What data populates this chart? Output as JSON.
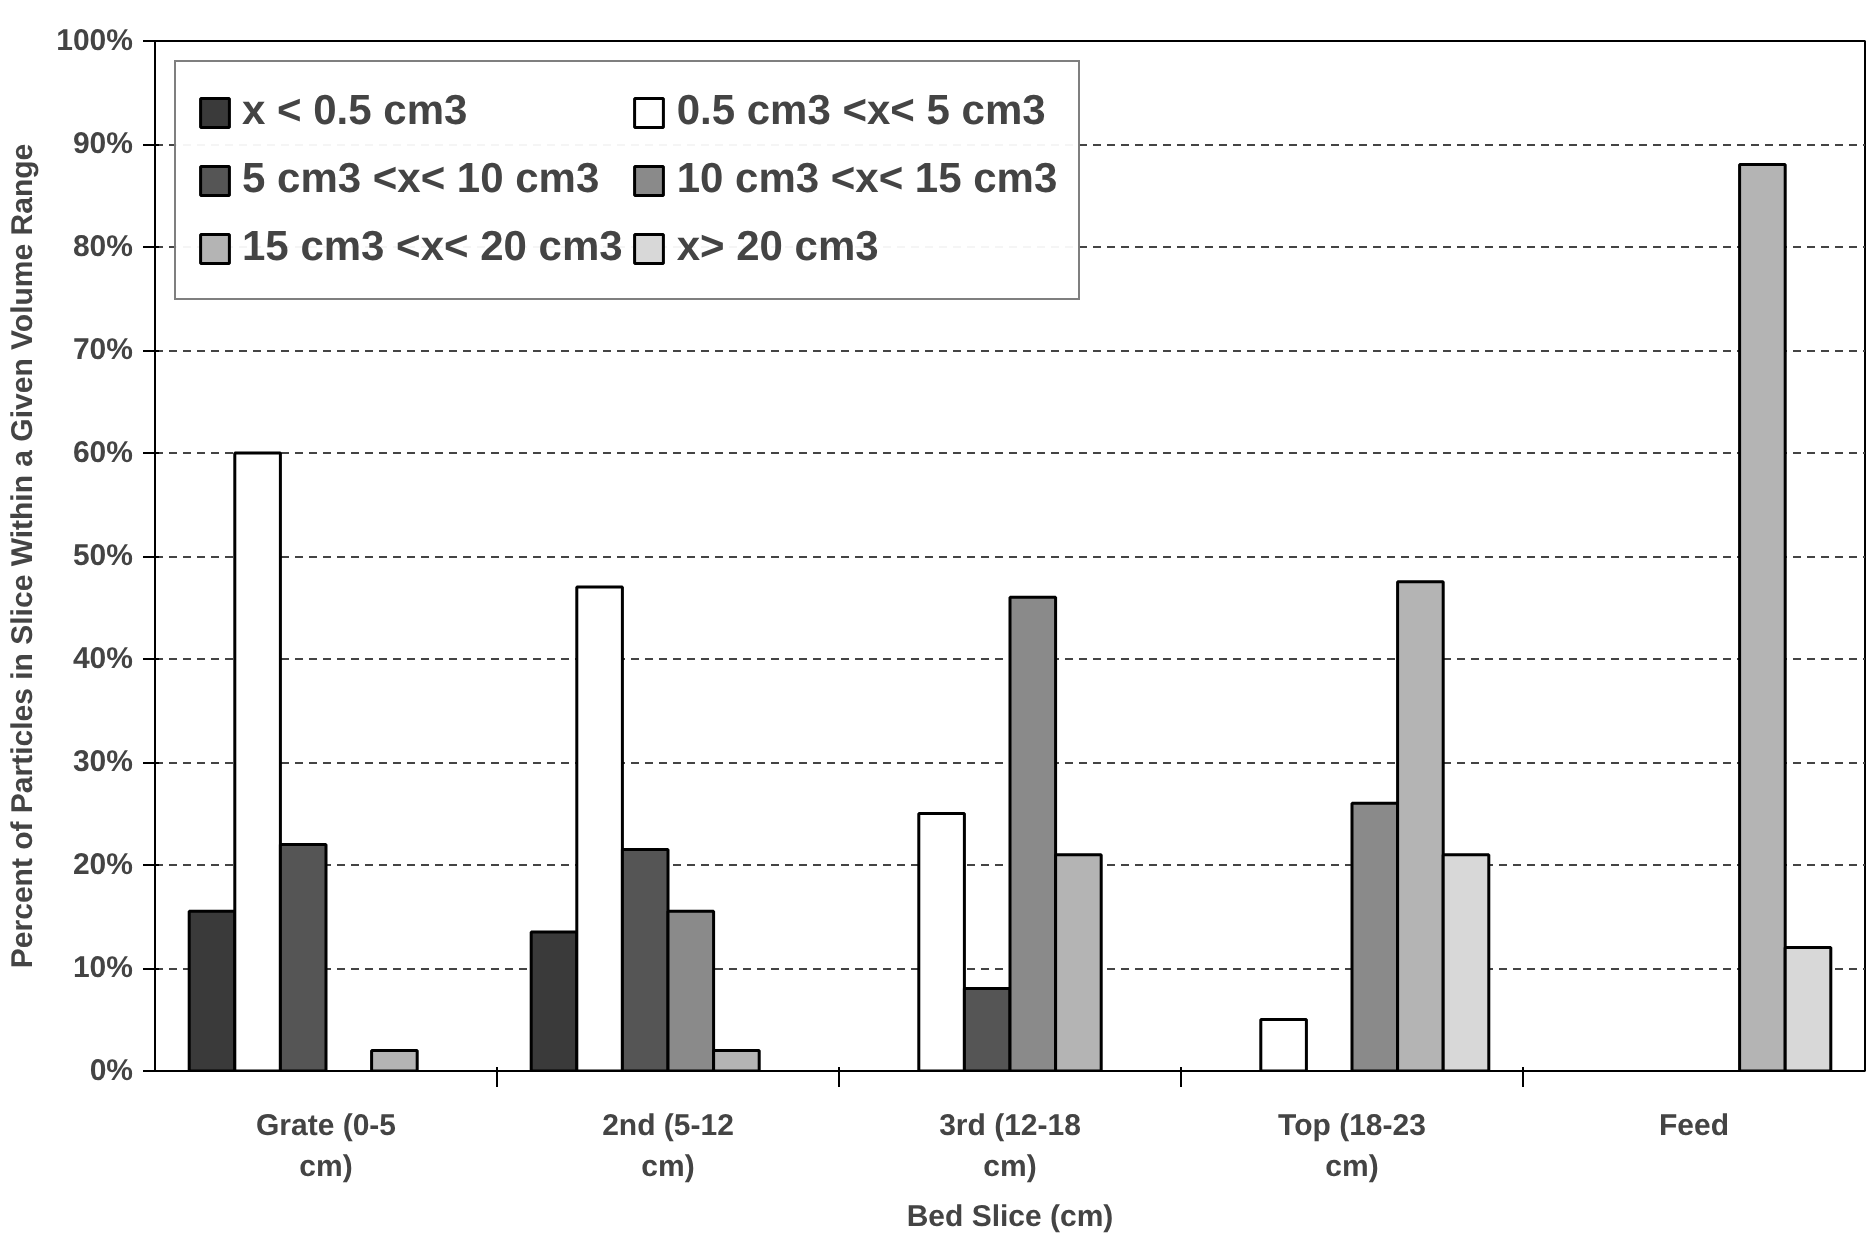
{
  "chart_data": {
    "type": "bar",
    "xlabel": "Bed Slice (cm)",
    "ylabel": "Percent of Particles in Slice Within a Given Volume Range",
    "categories": [
      "Grate (0-5 cm)",
      "2nd (5-12 cm)",
      "3rd (12-18 cm)",
      "Top (18-23 cm)",
      "Feed"
    ],
    "series": [
      {
        "name": "x < 0.5 cm3",
        "color": "#3a3a3a",
        "values": [
          15.5,
          13.5,
          null,
          null,
          null
        ]
      },
      {
        "name": "0.5 cm3 <x< 5 cm3",
        "color": "#ffffff",
        "values": [
          60,
          47,
          25,
          5,
          null
        ]
      },
      {
        "name": "5 cm3 <x< 10 cm3",
        "color": "#555555",
        "values": [
          22,
          21.5,
          8,
          null,
          null
        ]
      },
      {
        "name": "10 cm3 <x< 15 cm3",
        "color": "#8a8a8a",
        "values": [
          null,
          15.5,
          46,
          26,
          null
        ]
      },
      {
        "name": "15 cm3 <x< 20 cm3",
        "color": "#b4b4b4",
        "values": [
          2,
          2,
          21,
          47.5,
          88
        ]
      },
      {
        "name": "x> 20 cm3",
        "color": "#d8d8d8",
        "values": [
          null,
          null,
          null,
          21,
          12
        ]
      }
    ],
    "ylim": [
      0,
      100
    ],
    "yticks": [
      {
        "value": 0,
        "label": "0%"
      },
      {
        "value": 10,
        "label": "10%"
      },
      {
        "value": 20,
        "label": "20%"
      },
      {
        "value": 30,
        "label": "30%"
      },
      {
        "value": 40,
        "label": "40%"
      },
      {
        "value": 50,
        "label": "50%"
      },
      {
        "value": 60,
        "label": "60%"
      },
      {
        "value": 70,
        "label": "70%"
      },
      {
        "value": 80,
        "label": "80%"
      },
      {
        "value": 90,
        "label": "90%"
      },
      {
        "value": 100,
        "label": "100%"
      }
    ],
    "grid": "y",
    "legend": "top left"
  }
}
